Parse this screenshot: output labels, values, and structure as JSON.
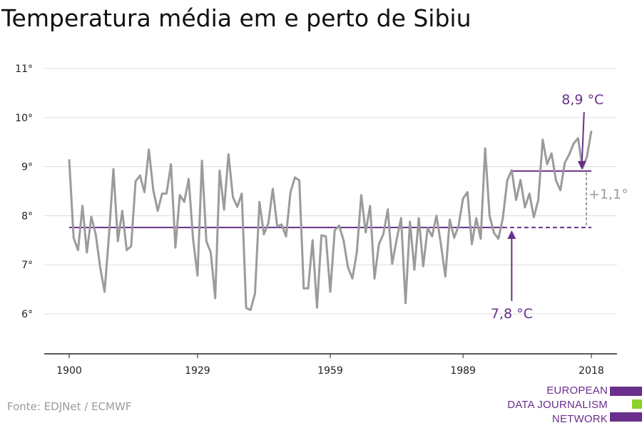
{
  "title": "Temperatura média em e perto de Sibiu",
  "source": "Fonte: EDJNet / ECMWF",
  "logo": {
    "lines": [
      "EUROPEAN",
      "DATA JOURNALISM",
      "NETWORK"
    ],
    "colors": [
      "#6a2f8c",
      "#8cd22a",
      "#6a2f8c"
    ]
  },
  "colors": {
    "series": "#9b9b9b",
    "accent": "#6a2f8c",
    "grid": "#dddddd",
    "axis": "#222222"
  },
  "chart_data": {
    "type": "line",
    "x_ticks": [
      1900,
      1929,
      1959,
      1989,
      2018
    ],
    "y_ticks": [
      6,
      7,
      8,
      9,
      10,
      11
    ],
    "y_tick_labels": [
      "6°",
      "7°",
      "8°",
      "9°",
      "10°",
      "11°"
    ],
    "xlim": [
      1900,
      2018
    ],
    "ylim": [
      5.2,
      11.5
    ],
    "grid": true,
    "series": [
      {
        "x": [
          1900,
          1901,
          1902,
          1903,
          1904,
          1905,
          1906,
          1907,
          1908,
          1909,
          1910,
          1911,
          1912,
          1913,
          1914,
          1915,
          1916,
          1917,
          1918,
          1919,
          1920,
          1921,
          1922,
          1923,
          1924,
          1925,
          1926,
          1927,
          1928,
          1929,
          1930,
          1931,
          1932,
          1933,
          1934,
          1935,
          1936,
          1937,
          1938,
          1939,
          1940,
          1941,
          1942,
          1943,
          1944,
          1945,
          1946,
          1947,
          1948,
          1949,
          1950,
          1951,
          1952,
          1953,
          1954,
          1955,
          1956,
          1957,
          1958,
          1959,
          1960,
          1961,
          1962,
          1963,
          1964,
          1965,
          1966,
          1967,
          1968,
          1969,
          1970,
          1971,
          1972,
          1973,
          1974,
          1975,
          1976,
          1977,
          1978,
          1979,
          1980,
          1981,
          1982,
          1983,
          1984,
          1985,
          1986,
          1987,
          1988,
          1989,
          1990,
          1991,
          1992,
          1993,
          1994,
          1995,
          1996,
          1997,
          1998,
          1999,
          2000,
          2001,
          2002,
          2003,
          2004,
          2005,
          2006,
          2007,
          2008,
          2009,
          2010,
          2011,
          2012,
          2013,
          2014,
          2015,
          2016,
          2017,
          2018
        ],
        "y": [
          9.15,
          7.55,
          7.3,
          8.2,
          7.25,
          7.98,
          7.62,
          6.95,
          6.45,
          7.6,
          8.95,
          7.48,
          8.1,
          7.3,
          7.38,
          8.7,
          8.82,
          8.48,
          9.35,
          8.52,
          8.1,
          8.45,
          8.45,
          9.05,
          7.35,
          8.42,
          8.28,
          8.75,
          7.52,
          6.78,
          9.12,
          7.48,
          7.25,
          6.32,
          8.92,
          8.12,
          9.25,
          8.38,
          8.18,
          8.45,
          6.12,
          6.08,
          6.42,
          8.28,
          7.62,
          7.85,
          8.55,
          7.78,
          7.82,
          7.58,
          8.48,
          8.78,
          8.72,
          6.52,
          6.52,
          7.5,
          6.13,
          7.6,
          7.58,
          6.45,
          7.7,
          7.8,
          7.5,
          6.95,
          6.72,
          7.25,
          8.42,
          7.66,
          8.2,
          6.72,
          7.42,
          7.62,
          8.13,
          7.02,
          7.52,
          7.95,
          6.22,
          7.88,
          6.9,
          7.95,
          6.97,
          7.75,
          7.58,
          8.0,
          7.42,
          6.76,
          7.92,
          7.55,
          7.8,
          8.35,
          8.48,
          7.42,
          7.95,
          7.53,
          9.37,
          8.0,
          7.65,
          7.53,
          7.95,
          8.72,
          8.93,
          8.32,
          8.73,
          8.17,
          8.45,
          7.97,
          8.32,
          9.55,
          9.05,
          9.27,
          8.72,
          8.52,
          9.08,
          9.25,
          9.47,
          9.58,
          8.97,
          9.2,
          9.73
        ]
      }
    ],
    "reference_lines": [
      {
        "y": 7.76,
        "x_start": 1900,
        "x_end": 1998,
        "x_dashed_end": 2018
      },
      {
        "y": 8.91,
        "x_start": 2000,
        "x_end": 2018
      }
    ],
    "annotations": [
      {
        "text": "8,9 °C",
        "x": 2017,
        "y": 10.2
      },
      {
        "text": "7,8 °C",
        "x": 2000,
        "y": 6.35
      },
      {
        "text": "+1,1°",
        "x": 2018,
        "y": 8.45
      }
    ]
  }
}
